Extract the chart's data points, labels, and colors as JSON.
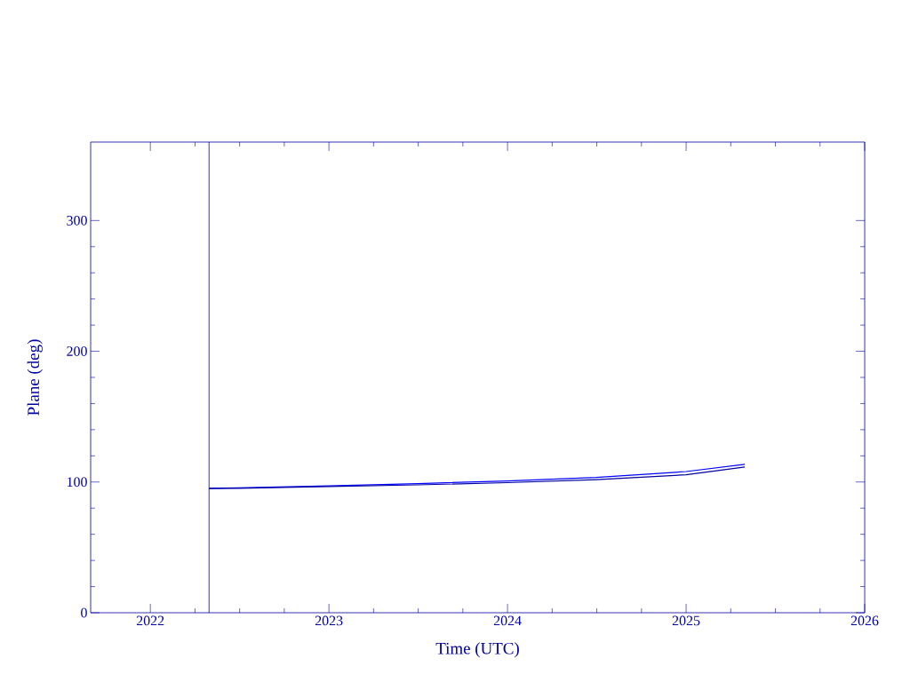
{
  "chart_data": {
    "type": "line",
    "xlabel": "Time (UTC)",
    "ylabel": "Plane (deg)",
    "xlim": [
      "2021-09-01",
      "2026-01-01"
    ],
    "xticks": [
      "2022",
      "2023",
      "2024",
      "2025",
      "2026"
    ],
    "ylim": [
      0,
      360
    ],
    "yticks": [
      0,
      100,
      200,
      300
    ],
    "x": [
      "2022-05-01",
      "2022-07-01",
      "2023-01-01",
      "2023-07-01",
      "2024-01-01",
      "2024-07-01",
      "2025-01-01",
      "2025-05-01"
    ],
    "series": [
      {
        "color": "#0000ff",
        "values": [
          95.2,
          95.5,
          97.0,
          98.8,
          100.8,
          103.5,
          108.0,
          113.5
        ]
      },
      {
        "color": "#0000a0",
        "values": [
          95.0,
          95.2,
          96.5,
          97.8,
          99.5,
          101.8,
          105.5,
          111.5
        ]
      }
    ],
    "ref_lines": [
      {
        "axis": "x",
        "value": "2022-05-01",
        "color": "#0000a0"
      }
    ],
    "line_style": "solid"
  }
}
